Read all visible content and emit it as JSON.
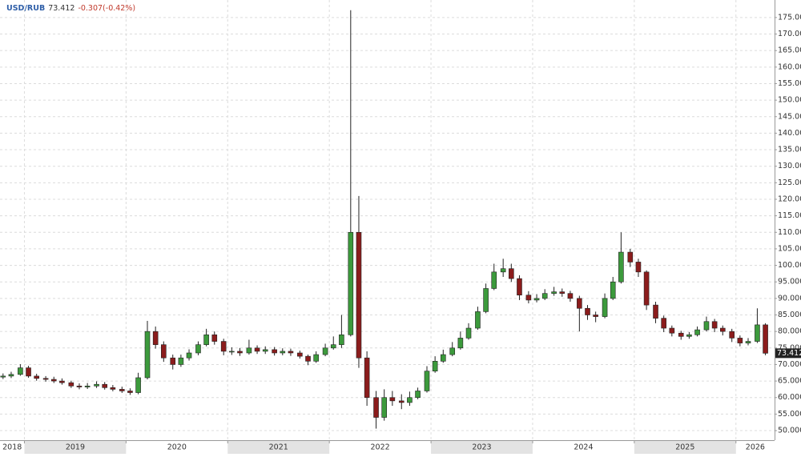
{
  "chart_data": {
    "type": "candlestick",
    "symbol": "USD/RUB",
    "last": 73.412,
    "change": "-0.307(-0.42%)",
    "up_color": "#3c9a3c",
    "down_color": "#8b1c1c",
    "grid": true,
    "xlim": [
      2018.76,
      2026.38
    ],
    "xticks": [
      2018,
      2019,
      2020,
      2021,
      2022,
      2023,
      2024,
      2025,
      2026
    ],
    "ylim": [
      47.1,
      180.3
    ],
    "yticks": [
      {
        "value": 50,
        "label": "50.000"
      },
      {
        "value": 55,
        "label": "55.000"
      },
      {
        "value": 60,
        "label": "60.000"
      },
      {
        "value": 65,
        "label": "65.000"
      },
      {
        "value": 70,
        "label": "70.000"
      },
      {
        "value": 75,
        "label": "75.000"
      },
      {
        "value": 80,
        "label": "80.000"
      },
      {
        "value": 85,
        "label": "85.000"
      },
      {
        "value": 90,
        "label": "90.000"
      },
      {
        "value": 95,
        "label": "95.000"
      },
      {
        "value": 100,
        "label": "100.000"
      },
      {
        "value": 105,
        "label": "105.000"
      },
      {
        "value": 110,
        "label": "110.000"
      },
      {
        "value": 115,
        "label": "115.000"
      },
      {
        "value": 120,
        "label": "120.000"
      },
      {
        "value": 125,
        "label": "125.000"
      },
      {
        "value": 130,
        "label": "130.000"
      },
      {
        "value": 135,
        "label": "135.000"
      },
      {
        "value": 140,
        "label": "140.000"
      },
      {
        "value": 145,
        "label": "145.000"
      },
      {
        "value": 150,
        "label": "150.000"
      },
      {
        "value": 155,
        "label": "155.000"
      },
      {
        "value": 160,
        "label": "160.000"
      },
      {
        "value": 165,
        "label": "165.000"
      },
      {
        "value": 170,
        "label": "170.000"
      },
      {
        "value": 175,
        "label": "175.000"
      }
    ],
    "x": [
      2018.79,
      2018.87,
      2018.96,
      2019.04,
      2019.12,
      2019.21,
      2019.29,
      2019.37,
      2019.46,
      2019.54,
      2019.62,
      2019.71,
      2019.79,
      2019.87,
      2019.96,
      2020.04,
      2020.12,
      2020.21,
      2020.29,
      2020.37,
      2020.46,
      2020.54,
      2020.62,
      2020.71,
      2020.79,
      2020.87,
      2020.96,
      2021.04,
      2021.12,
      2021.21,
      2021.29,
      2021.37,
      2021.46,
      2021.54,
      2021.62,
      2021.71,
      2021.79,
      2021.87,
      2021.96,
      2022.04,
      2022.12,
      2022.21,
      2022.29,
      2022.37,
      2022.46,
      2022.54,
      2022.62,
      2022.71,
      2022.79,
      2022.87,
      2022.96,
      2023.04,
      2023.12,
      2023.21,
      2023.29,
      2023.37,
      2023.46,
      2023.54,
      2023.62,
      2023.71,
      2023.79,
      2023.87,
      2023.96,
      2024.04,
      2024.12,
      2024.21,
      2024.29,
      2024.37,
      2024.46,
      2024.54,
      2024.62,
      2024.71,
      2024.79,
      2024.87,
      2024.96,
      2025.04,
      2025.12,
      2025.21,
      2025.29,
      2025.37,
      2025.46,
      2025.54,
      2025.62,
      2025.71,
      2025.79,
      2025.87,
      2025.96,
      2026.04,
      2026.12,
      2026.21,
      2026.29
    ],
    "open": [
      66.2,
      66.5,
      67,
      69,
      66.5,
      65.8,
      65.5,
      65,
      64.5,
      63.5,
      63.2,
      63.5,
      64,
      63,
      62.5,
      62,
      61.5,
      66,
      80,
      76,
      72,
      70,
      72,
      73.5,
      76,
      79,
      77,
      74,
      74,
      73.5,
      75,
      74,
      74.5,
      73.5,
      74,
      73.5,
      72.5,
      71,
      73,
      75,
      76,
      79,
      110,
      72,
      60,
      54,
      60,
      59,
      58.5,
      60,
      62,
      68,
      71,
      73,
      75,
      78,
      81,
      86,
      93,
      98,
      99,
      96,
      91,
      89.5,
      90,
      91.5,
      92,
      91.5,
      90,
      87,
      85,
      84.5,
      90,
      95,
      104,
      101,
      98,
      88,
      84,
      81,
      79.5,
      78.5,
      79,
      80.5,
      83,
      81,
      80,
      78,
      76.5,
      77,
      82
    ],
    "high": [
      67.3,
      67.8,
      70.1,
      69.6,
      67.2,
      66.5,
      66.3,
      65.8,
      65.1,
      64.3,
      64.4,
      64.9,
      64.7,
      63.8,
      63.3,
      62.8,
      67.5,
      83.2,
      81.5,
      77,
      73,
      73,
      74.6,
      77,
      80.8,
      80,
      77.8,
      75.2,
      75,
      77.5,
      75.8,
      75.5,
      75.3,
      74.9,
      74.8,
      74.2,
      73,
      74,
      76.3,
      78.5,
      85,
      177.2,
      121,
      74,
      62,
      62.5,
      62,
      61,
      61.8,
      63,
      69.5,
      72.5,
      74.5,
      76.8,
      80,
      82.5,
      87.5,
      94.5,
      100.5,
      102,
      100.5,
      97,
      92.2,
      91.3,
      92.8,
      93.5,
      93,
      92.3,
      90.8,
      88,
      86,
      91.5,
      96.5,
      110,
      105,
      102,
      98.5,
      89,
      84.8,
      81.8,
      80.2,
      79.8,
      81.5,
      84.5,
      83.8,
      81.8,
      80.8,
      78.8,
      78,
      87,
      82.5
    ],
    "low": [
      65.6,
      65.9,
      66.6,
      66,
      65.1,
      64.8,
      64.4,
      63.9,
      62.9,
      62.5,
      62.6,
      62.9,
      62.4,
      61.9,
      61.4,
      60.8,
      61,
      65.5,
      74.8,
      70.8,
      68.5,
      69.3,
      71.2,
      72.8,
      75.5,
      76,
      72.8,
      72.9,
      72.6,
      73,
      73.2,
      73.2,
      72.7,
      72.8,
      72.6,
      71.8,
      69.8,
      70.5,
      72.5,
      74.5,
      75,
      78.5,
      69,
      57.5,
      50.6,
      53,
      57.5,
      56.5,
      57.5,
      59.5,
      61.5,
      67.5,
      70.5,
      72.5,
      74.5,
      77.5,
      80.5,
      85.5,
      92.5,
      96.5,
      95,
      89.5,
      88.5,
      88.8,
      89.5,
      90.8,
      90.5,
      89,
      80,
      83.5,
      82.8,
      84,
      89.5,
      94.5,
      99.5,
      96.5,
      86.5,
      82.5,
      79.8,
      78.5,
      77.5,
      77.8,
      78.5,
      80,
      79.8,
      78.8,
      76.8,
      75.5,
      75.8,
      76.5,
      72.8
    ],
    "close": [
      66.5,
      67,
      69,
      66.5,
      65.8,
      65.5,
      65,
      64.5,
      63.5,
      63.2,
      63.5,
      64,
      63,
      62.5,
      62,
      61.5,
      66,
      80,
      76,
      72,
      70,
      72,
      73.5,
      76,
      79,
      77,
      74,
      74,
      73.5,
      75,
      74,
      74.5,
      73.5,
      74,
      73.5,
      72.5,
      71,
      73,
      75,
      76,
      79,
      110,
      72,
      60,
      54,
      60,
      59,
      58.5,
      60,
      62,
      68,
      71,
      73,
      75,
      78,
      81,
      86,
      93,
      98,
      99,
      96,
      91,
      89.5,
      90,
      91.5,
      92,
      91.5,
      90,
      87,
      85,
      84.5,
      90,
      95,
      104,
      101,
      98,
      88,
      84,
      81,
      79.5,
      78.5,
      79,
      80.5,
      83,
      81,
      80,
      78,
      76.5,
      77,
      82,
      73.412
    ]
  }
}
